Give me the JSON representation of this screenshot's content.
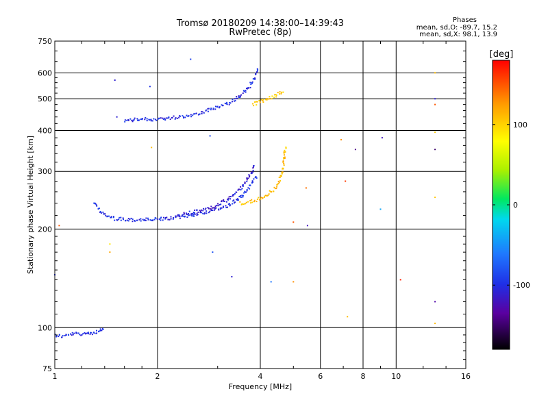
{
  "chart_data": {
    "type": "scatter",
    "title": "Tromsø 20180209 14:38:00–14:39:43",
    "subtitle": "RwPretec (8p)",
    "xlabel": "Frequency [MHz]",
    "ylabel": "Stationary phase Virtual Height [km]",
    "x_scale": "log",
    "y_scale": "log",
    "xlim": [
      1,
      16
    ],
    "ylim": [
      75,
      750
    ],
    "x_ticks": [
      "1",
      "2",
      "4",
      "6",
      "8",
      "10",
      "16"
    ],
    "y_ticks": [
      "75",
      "100",
      "200",
      "300",
      "400",
      "500",
      "600",
      "750"
    ],
    "grid": true,
    "phases_block": {
      "title": "Phases",
      "o_line": "mean, sd,O: -89.7, 15.2",
      "x_line": "mean, sd,X:  98.1, 13.9"
    },
    "colorbar": {
      "label": "[deg]",
      "ticks": [
        "100",
        "0",
        "-100"
      ],
      "range": [
        -180,
        180
      ]
    },
    "traces": [
      {
        "x": [
          1.0,
          1.05,
          1.1,
          1.15,
          1.2,
          1.25,
          1.3,
          1.35,
          1.4
        ],
        "y": [
          95,
          94,
          95,
          96,
          95,
          97,
          96,
          98,
          99
        ],
        "phase": -100
      },
      {
        "x": [
          1.3,
          1.4,
          1.5,
          1.7,
          2.0,
          2.3,
          2.6,
          2.9,
          3.2,
          3.5,
          3.7,
          3.9
        ],
        "y": [
          240,
          220,
          215,
          213,
          214,
          217,
          222,
          228,
          235,
          250,
          268,
          290
        ],
        "phase": -100
      },
      {
        "x": [
          2.3,
          2.6,
          2.9,
          3.2,
          3.4,
          3.6,
          3.75,
          3.85
        ],
        "y": [
          220,
          226,
          233,
          245,
          258,
          275,
          295,
          315
        ],
        "phase": -110
      },
      {
        "x": [
          1.6,
          1.8,
          2.0,
          2.2,
          2.5,
          2.8,
          3.1,
          3.3,
          3.5,
          3.7,
          3.85,
          3.95
        ],
        "y": [
          430,
          432,
          433,
          437,
          445,
          460,
          475,
          490,
          510,
          540,
          580,
          620
        ],
        "phase": -100
      },
      {
        "x": [
          3.5,
          3.8,
          4.0,
          4.2,
          4.4,
          4.55,
          4.65,
          4.7,
          4.75
        ],
        "y": [
          240,
          243,
          248,
          255,
          265,
          280,
          300,
          330,
          360
        ],
        "phase": 110
      },
      {
        "x": [
          3.8,
          4.1,
          4.4,
          4.7
        ],
        "y": [
          480,
          495,
          510,
          530
        ],
        "phase": 105
      }
    ],
    "isolated_points": [
      {
        "x": 1.5,
        "y": 570,
        "phase": -110
      },
      {
        "x": 1.52,
        "y": 440,
        "phase": -110
      },
      {
        "x": 1.92,
        "y": 355,
        "phase": 110
      },
      {
        "x": 1.9,
        "y": 545,
        "phase": -100
      },
      {
        "x": 2.5,
        "y": 660,
        "phase": -90
      },
      {
        "x": 2.85,
        "y": 385,
        "phase": -85
      },
      {
        "x": 2.9,
        "y": 170,
        "phase": -80
      },
      {
        "x": 3.3,
        "y": 143,
        "phase": -110
      },
      {
        "x": 4.3,
        "y": 138,
        "phase": -60
      },
      {
        "x": 5.0,
        "y": 138,
        "phase": 130
      },
      {
        "x": 5.45,
        "y": 267,
        "phase": 140
      },
      {
        "x": 6.9,
        "y": 375,
        "phase": 130
      },
      {
        "x": 7.1,
        "y": 280,
        "phase": 160
      },
      {
        "x": 7.2,
        "y": 108,
        "phase": 110
      },
      {
        "x": 7.6,
        "y": 350,
        "phase": -140
      },
      {
        "x": 9.0,
        "y": 230,
        "phase": -40
      },
      {
        "x": 9.1,
        "y": 380,
        "phase": -120
      },
      {
        "x": 10.3,
        "y": 140,
        "phase": 170
      },
      {
        "x": 13.0,
        "y": 600,
        "phase": 110
      },
      {
        "x": 13.0,
        "y": 500,
        "phase": -110
      },
      {
        "x": 13.0,
        "y": 480,
        "phase": 150
      },
      {
        "x": 13.0,
        "y": 395,
        "phase": 105
      },
      {
        "x": 13.0,
        "y": 350,
        "phase": -150
      },
      {
        "x": 13.0,
        "y": 250,
        "phase": 105
      },
      {
        "x": 13.0,
        "y": 120,
        "phase": -130
      },
      {
        "x": 13.0,
        "y": 103,
        "phase": 110
      },
      {
        "x": 1.0,
        "y": 145,
        "phase": -100
      },
      {
        "x": 1.03,
        "y": 205,
        "phase": 150
      },
      {
        "x": 1.45,
        "y": 180,
        "phase": 90
      },
      {
        "x": 1.45,
        "y": 170,
        "phase": 120
      },
      {
        "x": 5.5,
        "y": 205,
        "phase": -120
      },
      {
        "x": 5.0,
        "y": 210,
        "phase": 150
      }
    ]
  }
}
